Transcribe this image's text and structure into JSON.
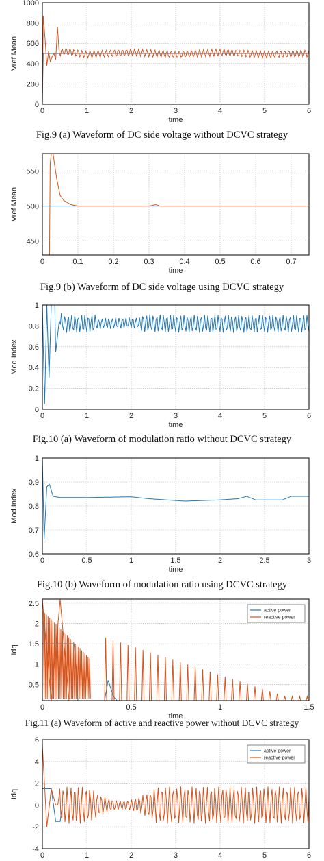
{
  "captions": {
    "fig9a": "Fig.9 (a) Waveform of DC side voltage without DCVC strategy",
    "fig9b": "Fig.9 (b) Waveform of DC side voltage using DCVC strategy",
    "fig10a": "Fig.10 (a) Waveform of modulation ratio without DCVC strategy",
    "fig10b": "Fig.10 (b) Waveform of modulation ratio using DCVC strategy",
    "fig11a": "Fig.11 (a) Waveform of active and reactive power without DCVC strategy"
  },
  "colors": {
    "blue": "#1f77b4",
    "orange": "#d95319",
    "axis": "#000000",
    "grid": "#b0b0b0"
  },
  "chart_data": [
    {
      "type": "line",
      "xlabel": "time",
      "ylabel": "Vref Mean",
      "xlim": [
        0,
        6
      ],
      "ylim": [
        0,
        1000
      ],
      "xticks": [
        "0",
        "1",
        "2",
        "3",
        "4",
        "5",
        "6"
      ],
      "yticks": [
        "0",
        "200",
        "400",
        "600",
        "800",
        "1000"
      ],
      "grid": true,
      "series": [
        {
          "color": "blue",
          "points": [
            [
              0,
              0
            ],
            [
              0.02,
              500
            ],
            [
              6,
              500
            ]
          ]
        },
        {
          "color": "orange",
          "points": [
            [
              0,
              0
            ],
            [
              0.02,
              870
            ],
            [
              0.06,
              650
            ],
            [
              0.1,
              380
            ],
            [
              0.14,
              520
            ],
            [
              0.18,
              420
            ],
            [
              0.22,
              470
            ],
            [
              0.26,
              500
            ],
            [
              0.3,
              440
            ],
            [
              0.34,
              760
            ],
            [
              0.38,
              500
            ],
            [
              0.5,
              520
            ],
            [
              1,
              490
            ],
            [
              2,
              510
            ],
            [
              3,
              490
            ],
            [
              4,
              510
            ],
            [
              5,
              490
            ],
            [
              6,
              500
            ]
          ]
        }
      ]
    },
    {
      "type": "line",
      "xlabel": "time",
      "ylabel": "Vref Mean",
      "xlim": [
        0,
        0.75
      ],
      "ylim": [
        430,
        575
      ],
      "xticks": [
        "0",
        "0.1",
        "0.2",
        "0.3",
        "0.4",
        "0.5",
        "0.6",
        "0.7"
      ],
      "yticks": [
        "450",
        "500",
        "550"
      ],
      "grid": true,
      "series": [
        {
          "color": "blue",
          "points": [
            [
              0,
              500
            ],
            [
              0.75,
              500
            ]
          ]
        },
        {
          "color": "orange",
          "points": [
            [
              0.02,
              430
            ],
            [
              0.022,
              560
            ],
            [
              0.025,
              575
            ],
            [
              0.03,
              575
            ],
            [
              0.04,
              540
            ],
            [
              0.05,
              515
            ],
            [
              0.06,
              508
            ],
            [
              0.08,
              502
            ],
            [
              0.1,
              500
            ],
            [
              0.3,
              500
            ],
            [
              0.32,
              502
            ],
            [
              0.33,
              500
            ],
            [
              0.75,
              500
            ]
          ]
        }
      ]
    },
    {
      "type": "line",
      "xlabel": "time",
      "ylabel": "Mod.Index",
      "xlim": [
        0,
        6
      ],
      "ylim": [
        0,
        1
      ],
      "xticks": [
        "0",
        "1",
        "2",
        "3",
        "4",
        "5",
        "6"
      ],
      "yticks": [
        "0",
        "0.2",
        "0.4",
        "0.6",
        "0.8",
        "1"
      ],
      "grid": true,
      "series": [
        {
          "color": "blue",
          "points": [
            [
              0,
              1
            ],
            [
              0.05,
              0.05
            ],
            [
              0.1,
              1
            ],
            [
              0.15,
              0.3
            ],
            [
              0.2,
              1
            ],
            [
              0.28,
              1
            ],
            [
              0.3,
              0.55
            ],
            [
              0.34,
              0.7
            ],
            [
              0.38,
              0.85
            ],
            [
              0.5,
              0.82
            ],
            [
              1,
              0.82
            ],
            [
              2,
              0.83
            ],
            [
              3,
              0.82
            ],
            [
              4,
              0.82
            ],
            [
              5,
              0.82
            ],
            [
              6,
              0.82
            ]
          ]
        }
      ]
    },
    {
      "type": "line",
      "xlabel": "time",
      "ylabel": "Mod.Index",
      "xlim": [
        0,
        3
      ],
      "ylim": [
        0.6,
        1
      ],
      "xticks": [
        "0",
        "0.5",
        "1",
        "1.5",
        "2",
        "2.5",
        "3"
      ],
      "yticks": [
        "0.6",
        "0.7",
        "0.8",
        "0.9",
        "1"
      ],
      "grid": true,
      "series": [
        {
          "color": "blue",
          "points": [
            [
              0,
              1
            ],
            [
              0.02,
              0.66
            ],
            [
              0.05,
              0.88
            ],
            [
              0.08,
              0.89
            ],
            [
              0.12,
              0.84
            ],
            [
              0.2,
              0.835
            ],
            [
              0.5,
              0.835
            ],
            [
              1,
              0.838
            ],
            [
              1.2,
              0.83
            ],
            [
              1.6,
              0.82
            ],
            [
              2,
              0.825
            ],
            [
              2.2,
              0.83
            ],
            [
              2.3,
              0.84
            ],
            [
              2.4,
              0.825
            ],
            [
              2.7,
              0.825
            ],
            [
              2.8,
              0.84
            ],
            [
              3,
              0.84
            ]
          ]
        }
      ]
    },
    {
      "type": "line",
      "xlabel": "time",
      "ylabel": "Idq",
      "xlim": [
        0,
        1.5
      ],
      "ylim": [
        0.1,
        2.6
      ],
      "xticks": [
        "0",
        "0.5",
        "1",
        "1.5"
      ],
      "yticks": [
        "0.5",
        "1",
        "1.5",
        "2",
        "2.5"
      ],
      "legend": "top-right",
      "grid": true,
      "series": [
        {
          "name": "active power",
          "color": "blue",
          "points": [
            [
              0,
              1.5
            ],
            [
              0.1,
              1.5
            ],
            [
              0.18,
              1.5
            ],
            [
              0.2,
              0.1
            ],
            [
              0.35,
              0.1
            ],
            [
              0.37,
              0.6
            ],
            [
              0.4,
              0.2
            ],
            [
              0.42,
              0.1
            ],
            [
              1.5,
              0.1
            ]
          ]
        },
        {
          "name": "reactive power",
          "color": "orange",
          "points": [
            [
              0,
              2.6
            ],
            [
              0.05,
              0.1
            ],
            [
              0.1,
              2.6
            ],
            [
              0.15,
              0.1
            ],
            [
              1.5,
              0.1
            ]
          ]
        }
      ]
    },
    {
      "type": "line",
      "xlabel": "time",
      "ylabel": "Idq",
      "xlim": [
        0,
        6
      ],
      "ylim": [
        -4,
        6
      ],
      "xticks": [
        "0",
        "1",
        "2",
        "3",
        "4",
        "5",
        "6"
      ],
      "yticks": [
        "-4",
        "-2",
        "0",
        "2",
        "4",
        "6"
      ],
      "legend": "top-right",
      "grid": true,
      "series": [
        {
          "name": "active power",
          "color": "blue",
          "points": [
            [
              0,
              1.5
            ],
            [
              0.2,
              1.5
            ],
            [
              0.3,
              -1.5
            ],
            [
              0.4,
              -1.5
            ],
            [
              0.45,
              0
            ],
            [
              6,
              0
            ]
          ]
        },
        {
          "name": "reactive power",
          "color": "orange",
          "points": [
            [
              0,
              5.5
            ],
            [
              0.1,
              -2
            ],
            [
              0.2,
              1.5
            ],
            [
              0.3,
              0
            ],
            [
              6,
              0
            ]
          ]
        }
      ]
    }
  ]
}
